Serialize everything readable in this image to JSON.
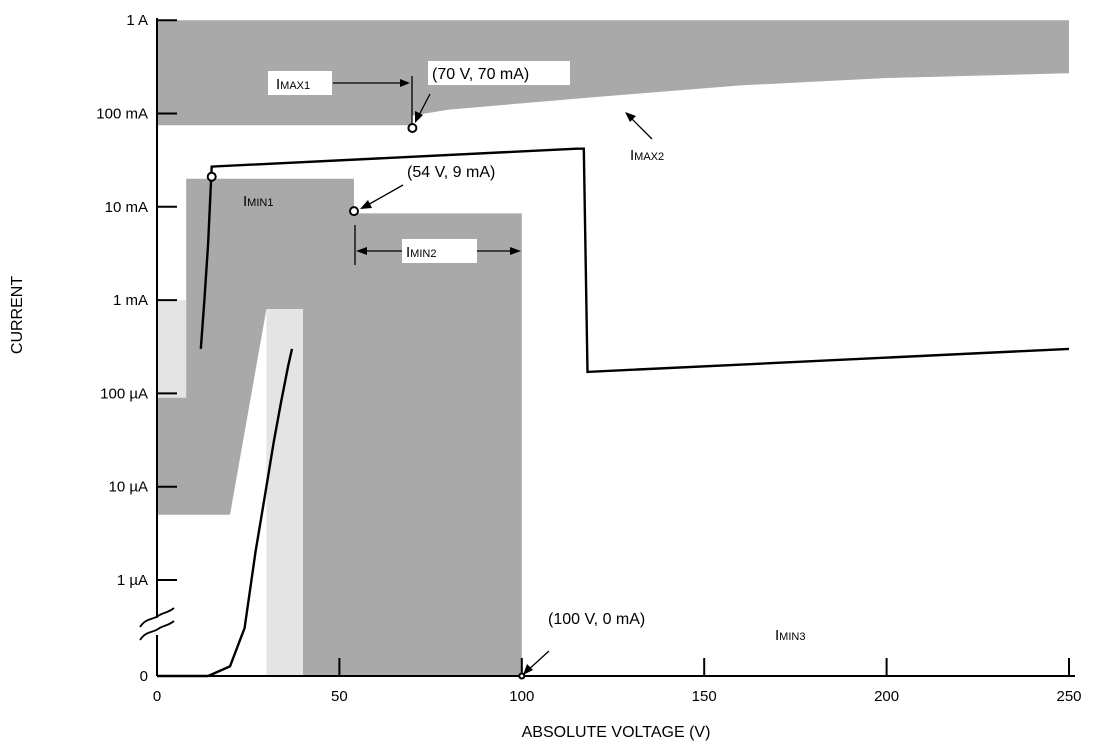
{
  "chart_data": {
    "type": "area",
    "xlabel": "ABSOLUTE VOLTAGE (V)",
    "ylabel": "CURRENT",
    "xlim": [
      0,
      255
    ],
    "x_ticks": [
      0,
      50,
      100,
      150,
      200,
      250
    ],
    "x_tick_labels": [
      "0",
      "50",
      "100",
      "150",
      "200",
      "250"
    ],
    "y_scale": "log",
    "y_ticks_A": [
      0,
      1e-06,
      1e-05,
      0.0001,
      0.001,
      0.01,
      0.1,
      1
    ],
    "y_tick_labels": [
      "0",
      "1 µA",
      "10 µA",
      "100 µA",
      "1 mA",
      "10 mA",
      "100 mA",
      "1 A"
    ],
    "grid": false,
    "regions": [
      {
        "id": "imax-band",
        "fill": "#a9a9a9",
        "points_V_A": [
          [
            0,
            1
          ],
          [
            250,
            1
          ],
          [
            250,
            0.27
          ],
          [
            200,
            0.24
          ],
          [
            160,
            0.2
          ],
          [
            120,
            0.15
          ],
          [
            80,
            0.11
          ],
          [
            70,
            0.095
          ],
          [
            70,
            0.075
          ],
          [
            0,
            0.075
          ]
        ]
      },
      {
        "id": "light-left",
        "fill": "#e4e4e4",
        "points_V_A": [
          [
            0,
            0.001
          ],
          [
            8,
            0.001
          ],
          [
            8,
            9e-05
          ],
          [
            0,
            9e-05
          ]
        ]
      },
      {
        "id": "imin1-region",
        "fill": "#a9a9a9",
        "points_V_A": [
          [
            0,
            9e-05
          ],
          [
            8,
            9e-05
          ],
          [
            8,
            0.02
          ],
          [
            54,
            0.02
          ],
          [
            54,
            0.0085
          ],
          [
            100,
            0.0085
          ],
          [
            100,
            0
          ],
          [
            40,
            0
          ],
          [
            40,
            0.0008
          ],
          [
            30,
            0.0008
          ],
          [
            20,
            5e-06
          ],
          [
            0,
            5e-06
          ]
        ]
      },
      {
        "id": "light-strip",
        "fill": "#e4e4e4",
        "points_V_A": [
          [
            30,
            0
          ],
          [
            40,
            0
          ],
          [
            40,
            0.0008
          ],
          [
            30,
            0.0008
          ]
        ]
      }
    ],
    "series": [
      {
        "id": "device-characteristic",
        "points_V_A": [
          [
            12,
            0.0003
          ],
          [
            13,
            0.001
          ],
          [
            14,
            0.004
          ],
          [
            15,
            0.027
          ],
          [
            115,
            0.042
          ],
          [
            117,
            0.042
          ],
          [
            118,
            0.00017
          ],
          [
            250,
            0.0003
          ]
        ]
      },
      {
        "id": "low-voltage-curve",
        "points_V_A": [
          [
            0,
            0
          ],
          [
            8,
            0
          ],
          [
            14,
            0
          ],
          [
            20,
            1e-07
          ],
          [
            24,
            5e-07
          ],
          [
            27,
            2e-06
          ],
          [
            30,
            1e-05
          ],
          [
            32,
            3e-05
          ],
          [
            34,
            8e-05
          ],
          [
            36,
            0.0002
          ],
          [
            37,
            0.0003
          ]
        ]
      }
    ],
    "points": [
      {
        "id": "pt-70V",
        "x_V": 70,
        "y_A": 0.07,
        "label": "(70 V, 70 mA)"
      },
      {
        "id": "pt-54V",
        "x_V": 54,
        "y_A": 0.009,
        "label": "(54 V, 9 mA)"
      },
      {
        "id": "pt-100V",
        "x_V": 100,
        "y_A": 0,
        "label": "(100 V, 0 mA)"
      },
      {
        "id": "pt-15V",
        "x_V": 15,
        "y_A": 0.021,
        "label": ""
      }
    ],
    "labels": [
      {
        "id": "imax1",
        "main": "I",
        "sub": "MAX1"
      },
      {
        "id": "imax2",
        "main": "I",
        "sub": "MAX2"
      },
      {
        "id": "imin1",
        "main": "I",
        "sub": "MIN1"
      },
      {
        "id": "imin2",
        "main": "I",
        "sub": "MIN2"
      },
      {
        "id": "imin3",
        "main": "I",
        "sub": "MIN3"
      }
    ]
  }
}
